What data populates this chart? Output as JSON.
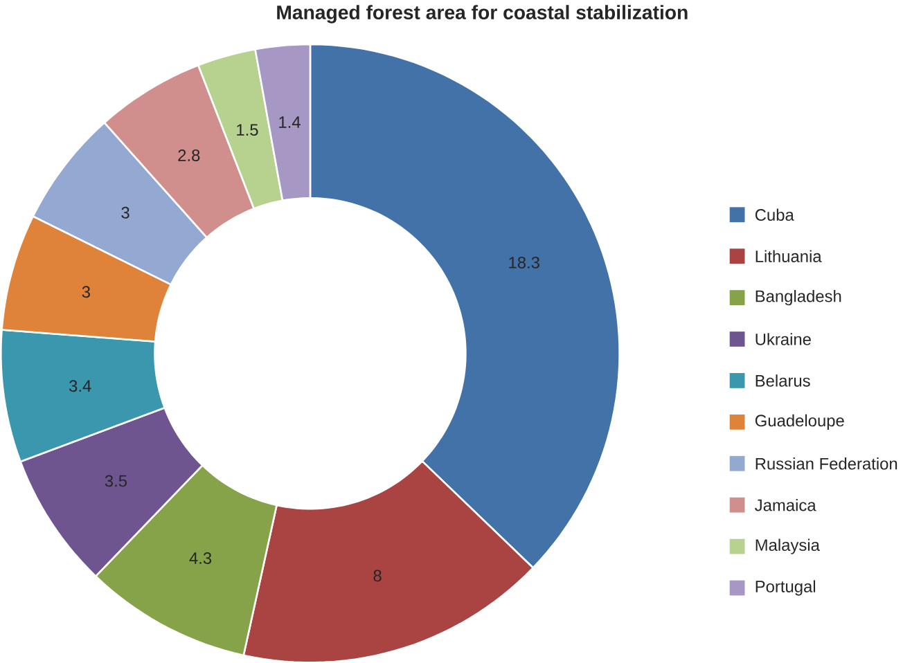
{
  "chart_data": {
    "type": "donut",
    "title": "Managed forest area for coastal stabilization",
    "categories": [
      "Cuba",
      "Lithuania",
      "Bangladesh",
      "Ukraine",
      "Belarus",
      "Guadeloupe",
      "Russian Federation",
      "Jamaica",
      "Malaysia",
      "Portugal"
    ],
    "values": [
      18.3,
      8,
      4.3,
      3.5,
      3.4,
      3,
      3,
      2.8,
      1.5,
      1.4
    ],
    "colors": [
      "#4272a8",
      "#a94442",
      "#86a34a",
      "#6f558f",
      "#3a97ae",
      "#e0833a",
      "#93a9d2",
      "#d08f8c",
      "#b7d18f",
      "#a797c4"
    ],
    "data_labels": true,
    "legend": "right"
  }
}
